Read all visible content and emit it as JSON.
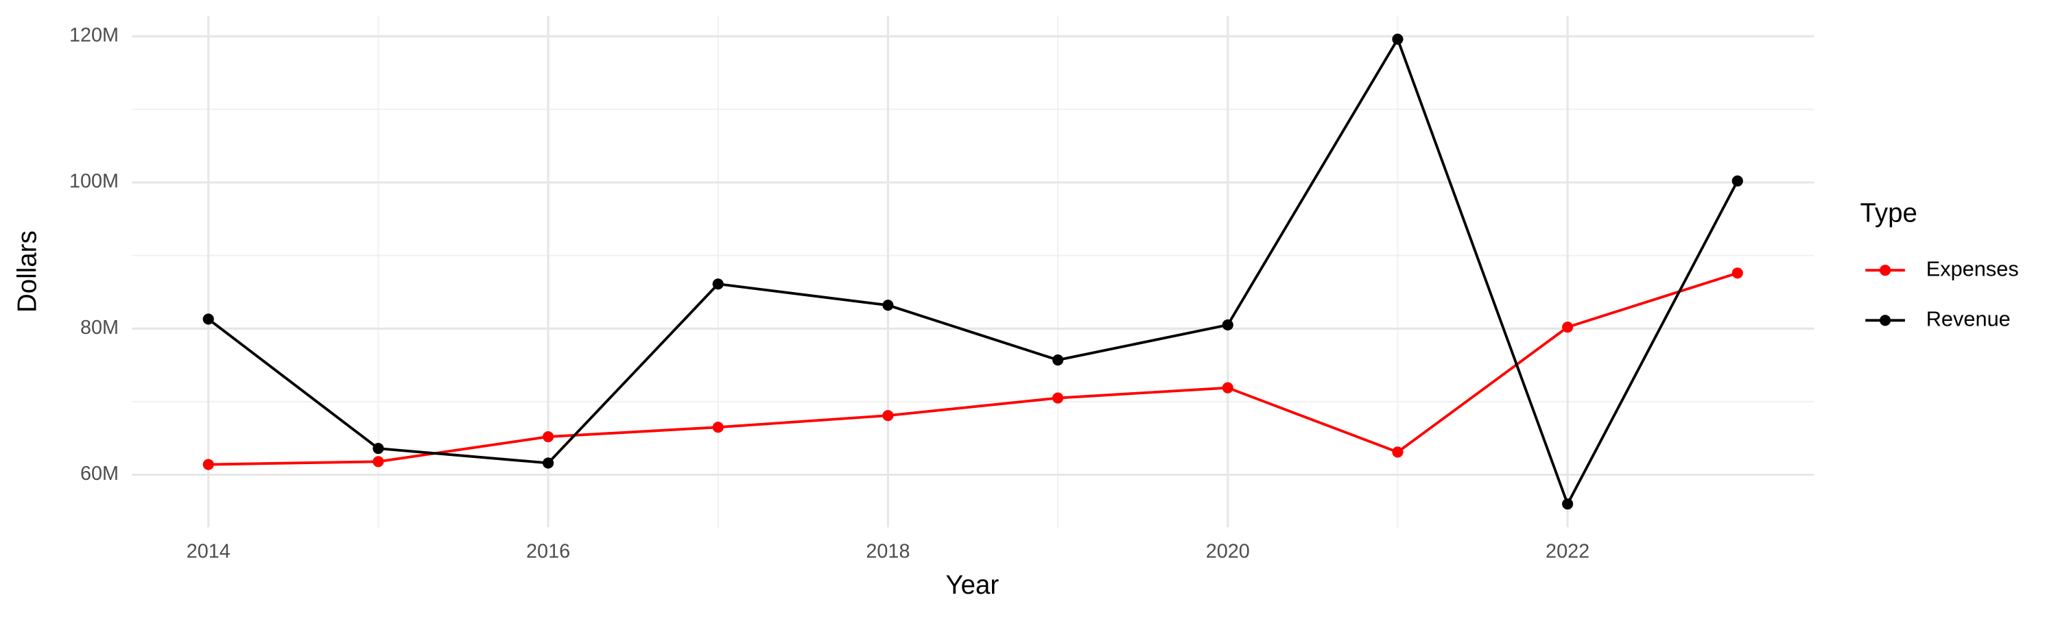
{
  "chart_data": {
    "type": "line",
    "x_label": "Year",
    "y_label": "Dollars",
    "legend_title": "Type",
    "legend_position": "right",
    "x": [
      2014,
      2015,
      2016,
      2017,
      2018,
      2019,
      2020,
      2021,
      2022,
      2023
    ],
    "series": [
      {
        "name": "Expenses",
        "color": "#ff0000",
        "values": [
          61400000,
          61800000,
          65200000,
          66500000,
          68100000,
          70500000,
          71900000,
          63100000,
          80200000,
          87600000
        ]
      },
      {
        "name": "Revenue",
        "color": "#000000",
        "values": [
          81300000,
          63600000,
          61600000,
          86100000,
          83200000,
          75700000,
          80500000,
          119600000,
          56000000,
          100200000
        ]
      }
    ],
    "xlim": [
      2013.55,
      2023.45
    ],
    "xticks": [
      2014,
      2016,
      2018,
      2020,
      2022
    ],
    "ylim": [
      52800000,
      122800000
    ],
    "yticks": [
      {
        "value": 60000000,
        "label": "60M"
      },
      {
        "value": 80000000,
        "label": "80M"
      },
      {
        "value": 100000000,
        "label": "100M"
      },
      {
        "value": 120000000,
        "label": "120M"
      }
    ],
    "grid": true,
    "minor_grid": true
  }
}
